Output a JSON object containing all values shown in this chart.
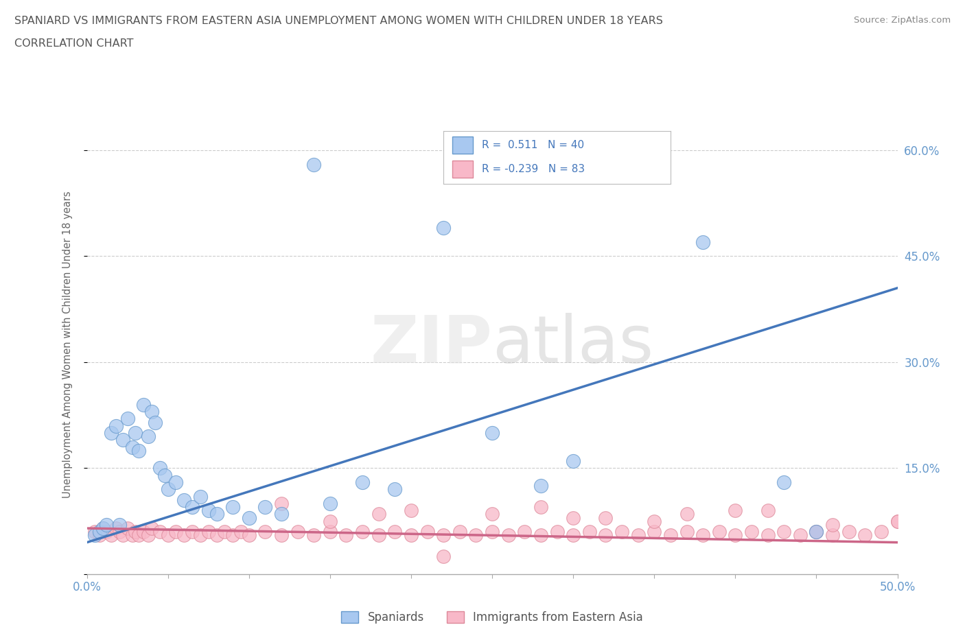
{
  "title_line1": "SPANIARD VS IMMIGRANTS FROM EASTERN ASIA UNEMPLOYMENT AMONG WOMEN WITH CHILDREN UNDER 18 YEARS",
  "title_line2": "CORRELATION CHART",
  "source": "Source: ZipAtlas.com",
  "ylabel": "Unemployment Among Women with Children Under 18 years",
  "xlim": [
    0.0,
    0.5
  ],
  "ylim": [
    0.0,
    0.65
  ],
  "x_ticks": [
    0.0,
    0.05,
    0.1,
    0.15,
    0.2,
    0.25,
    0.3,
    0.35,
    0.4,
    0.45,
    0.5
  ],
  "y_ticks_right": [
    0.0,
    0.15,
    0.3,
    0.45,
    0.6
  ],
  "y_tick_labels_right": [
    "",
    "15.0%",
    "30.0%",
    "45.0%",
    "60.0%"
  ],
  "spaniards_color": "#A8C8F0",
  "immigrants_color": "#F8B8C8",
  "spaniards_edge_color": "#6699CC",
  "immigrants_edge_color": "#DD8899",
  "spaniards_line_color": "#4477BB",
  "immigrants_line_color": "#CC6688",
  "watermark": "ZIPatlas",
  "background_color": "#ffffff",
  "grid_color": "#cccccc",
  "legend_box_color": "#cccccc",
  "title_color": "#555555",
  "tick_color": "#6699CC",
  "ylabel_color": "#666666",
  "source_color": "#888888",
  "spaniards_x": [
    0.005,
    0.008,
    0.01,
    0.012,
    0.015,
    0.018,
    0.02,
    0.022,
    0.025,
    0.028,
    0.03,
    0.032,
    0.035,
    0.038,
    0.04,
    0.042,
    0.045,
    0.048,
    0.05,
    0.055,
    0.06,
    0.065,
    0.07,
    0.075,
    0.08,
    0.09,
    0.1,
    0.11,
    0.12,
    0.14,
    0.15,
    0.17,
    0.19,
    0.22,
    0.25,
    0.28,
    0.3,
    0.38,
    0.43,
    0.45
  ],
  "spaniards_y": [
    0.055,
    0.06,
    0.065,
    0.07,
    0.2,
    0.21,
    0.07,
    0.19,
    0.22,
    0.18,
    0.2,
    0.175,
    0.24,
    0.195,
    0.23,
    0.215,
    0.15,
    0.14,
    0.12,
    0.13,
    0.105,
    0.095,
    0.11,
    0.09,
    0.085,
    0.095,
    0.08,
    0.095,
    0.085,
    0.58,
    0.1,
    0.13,
    0.12,
    0.49,
    0.2,
    0.125,
    0.16,
    0.47,
    0.13,
    0.06
  ],
  "immigrants_x": [
    0.005,
    0.008,
    0.01,
    0.012,
    0.015,
    0.018,
    0.02,
    0.022,
    0.025,
    0.028,
    0.03,
    0.032,
    0.035,
    0.038,
    0.04,
    0.045,
    0.05,
    0.055,
    0.06,
    0.065,
    0.07,
    0.075,
    0.08,
    0.085,
    0.09,
    0.095,
    0.1,
    0.11,
    0.12,
    0.13,
    0.14,
    0.15,
    0.16,
    0.17,
    0.18,
    0.19,
    0.2,
    0.21,
    0.22,
    0.23,
    0.24,
    0.25,
    0.26,
    0.27,
    0.28,
    0.29,
    0.3,
    0.31,
    0.32,
    0.33,
    0.34,
    0.35,
    0.36,
    0.37,
    0.38,
    0.39,
    0.4,
    0.41,
    0.42,
    0.43,
    0.44,
    0.45,
    0.46,
    0.47,
    0.48,
    0.49,
    0.5,
    0.15,
    0.2,
    0.25,
    0.3,
    0.35,
    0.4,
    0.45,
    0.5,
    0.12,
    0.18,
    0.28,
    0.32,
    0.37,
    0.42,
    0.46,
    0.22
  ],
  "immigrants_y": [
    0.06,
    0.055,
    0.065,
    0.06,
    0.055,
    0.065,
    0.06,
    0.055,
    0.065,
    0.055,
    0.06,
    0.055,
    0.06,
    0.055,
    0.065,
    0.06,
    0.055,
    0.06,
    0.055,
    0.06,
    0.055,
    0.06,
    0.055,
    0.06,
    0.055,
    0.06,
    0.055,
    0.06,
    0.055,
    0.06,
    0.055,
    0.06,
    0.055,
    0.06,
    0.055,
    0.06,
    0.055,
    0.06,
    0.055,
    0.06,
    0.055,
    0.06,
    0.055,
    0.06,
    0.055,
    0.06,
    0.055,
    0.06,
    0.055,
    0.06,
    0.055,
    0.06,
    0.055,
    0.06,
    0.055,
    0.06,
    0.055,
    0.06,
    0.055,
    0.06,
    0.055,
    0.06,
    0.055,
    0.06,
    0.055,
    0.06,
    0.075,
    0.075,
    0.09,
    0.085,
    0.08,
    0.075,
    0.09,
    0.06,
    0.075,
    0.1,
    0.085,
    0.095,
    0.08,
    0.085,
    0.09,
    0.07,
    0.025
  ]
}
